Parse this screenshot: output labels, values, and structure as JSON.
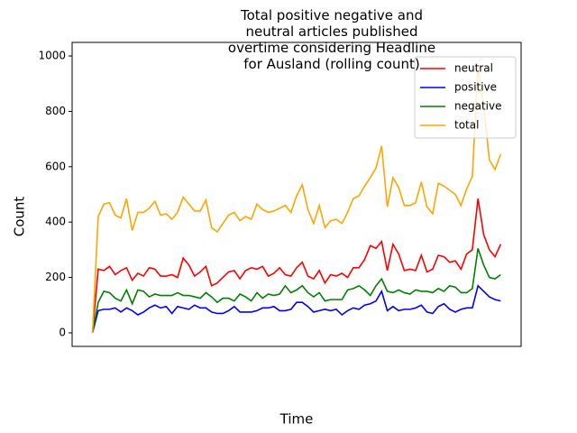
{
  "chart_data": {
    "type": "line",
    "title": "Total positive negative and\nneutral articles published\novertime considering Headline\nfor Ausland (rolling count)",
    "x_label": "Time",
    "y_label": "Count",
    "categories": [
      null,
      null,
      null,
      null,
      null,
      null,
      null,
      null,
      null,
      null,
      null,
      null,
      null,
      null,
      null,
      null,
      null,
      null,
      null,
      null,
      null,
      null,
      null,
      null,
      null,
      null,
      null,
      null,
      null,
      null,
      null,
      null,
      null,
      null,
      null,
      null,
      null,
      null,
      null,
      null,
      null,
      null,
      null,
      null,
      null,
      null,
      null,
      null,
      null,
      null,
      null,
      null,
      null,
      null,
      null,
      null,
      null,
      null,
      null,
      null,
      null,
      null,
      null,
      null,
      null,
      null,
      null,
      null,
      null,
      null,
      null,
      null,
      null
    ],
    "series": [
      {
        "name": "neutral",
        "color": "#ff0000",
        "values": [
          0,
          230,
          225,
          240,
          210,
          225,
          235,
          190,
          215,
          205,
          235,
          230,
          205,
          205,
          210,
          200,
          270,
          245,
          205,
          220,
          240,
          170,
          180,
          200,
          220,
          225,
          195,
          225,
          235,
          230,
          240,
          205,
          215,
          235,
          210,
          205,
          235,
          255,
          205,
          195,
          225,
          180,
          210,
          205,
          215,
          200,
          235,
          235,
          265,
          315,
          305,
          330,
          225,
          320,
          285,
          225,
          230,
          225,
          280,
          220,
          230,
          280,
          275,
          255,
          260,
          230,
          285,
          300,
          485,
          355,
          300,
          275,
          320
        ]
      },
      {
        "name": "positive",
        "color": "#0000ff",
        "values": [
          0,
          80,
          85,
          85,
          90,
          75,
          90,
          80,
          65,
          75,
          90,
          100,
          90,
          95,
          70,
          95,
          90,
          85,
          100,
          90,
          90,
          75,
          70,
          70,
          80,
          95,
          75,
          75,
          75,
          80,
          90,
          90,
          95,
          80,
          80,
          85,
          110,
          110,
          95,
          75,
          80,
          85,
          80,
          85,
          65,
          80,
          90,
          85,
          100,
          105,
          115,
          150,
          80,
          95,
          80,
          85,
          85,
          90,
          100,
          75,
          70,
          95,
          105,
          85,
          75,
          85,
          90,
          90,
          170,
          150,
          130,
          120,
          115
        ]
      },
      {
        "name": "negative",
        "color": "#008000",
        "values": [
          0,
          110,
          150,
          145,
          125,
          115,
          155,
          105,
          155,
          150,
          130,
          140,
          135,
          135,
          135,
          145,
          135,
          135,
          130,
          125,
          145,
          130,
          110,
          125,
          125,
          115,
          140,
          130,
          115,
          145,
          125,
          140,
          135,
          140,
          170,
          145,
          155,
          170,
          145,
          130,
          145,
          115,
          120,
          120,
          120,
          155,
          160,
          170,
          155,
          135,
          170,
          195,
          150,
          145,
          155,
          145,
          140,
          155,
          150,
          150,
          145,
          160,
          150,
          170,
          165,
          145,
          145,
          160,
          305,
          245,
          200,
          195,
          210
        ]
      },
      {
        "name": "total",
        "color": "#ffa500",
        "values": [
          0,
          420,
          465,
          470,
          425,
          415,
          485,
          370,
          435,
          435,
          450,
          475,
          425,
          430,
          410,
          435,
          490,
          465,
          440,
          440,
          480,
          380,
          365,
          395,
          425,
          435,
          405,
          420,
          410,
          465,
          445,
          435,
          440,
          450,
          460,
          435,
          495,
          535,
          445,
          395,
          460,
          380,
          405,
          410,
          395,
          435,
          485,
          495,
          530,
          560,
          595,
          675,
          455,
          560,
          525,
          460,
          460,
          470,
          545,
          455,
          430,
          540,
          530,
          515,
          500,
          460,
          520,
          565,
          960,
          820,
          625,
          590,
          645
        ]
      }
    ],
    "ylim": [
      -49,
      1049
    ],
    "yticks": [
      0,
      200,
      400,
      600,
      800,
      1000
    ],
    "grid": false,
    "legend": "upper right"
  }
}
